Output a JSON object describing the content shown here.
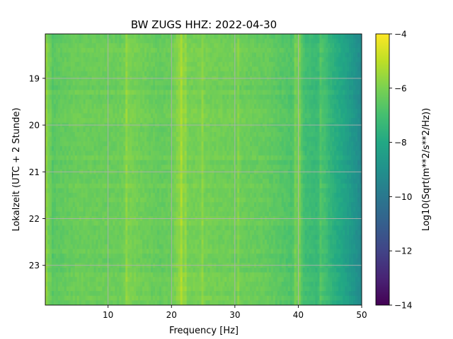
{
  "chart_data": {
    "type": "heatmap",
    "title": "BW ZUGS  HHZ: 2022-04-30",
    "xlabel": "Frequency [Hz]",
    "ylabel": "Lokalzeit (UTC + 2 Stunde)",
    "xlim": [
      0.1,
      50
    ],
    "ylim": [
      23.85,
      18.05
    ],
    "x_ticks": [
      10,
      20,
      30,
      40,
      50
    ],
    "y_ticks": [
      19,
      20,
      21,
      22,
      23
    ],
    "grid": true,
    "colormap": "viridis",
    "colorbar": {
      "label": "Log10(Sqrt(m**2/s**2/Hz))",
      "range": [
        -14,
        -4
      ],
      "ticks": [
        -14,
        -12,
        -10,
        -8,
        -6,
        -4
      ]
    },
    "spectral_profile": {
      "frequency_hz": [
        0.1,
        0.5,
        1,
        2,
        5,
        8,
        10,
        12,
        13,
        15,
        18,
        20,
        21.5,
        22.5,
        25,
        28,
        30,
        32,
        35,
        37,
        39,
        40,
        41,
        43,
        44,
        45,
        46,
        47,
        48,
        49,
        50
      ],
      "level": [
        -5.4,
        -6.0,
        -6.7,
        -6.5,
        -6.3,
        -6.3,
        -6.3,
        -6.3,
        -6.0,
        -6.2,
        -6.4,
        -6.3,
        -5.6,
        -6.1,
        -6.1,
        -6.2,
        -6.2,
        -6.3,
        -6.4,
        -6.6,
        -6.8,
        -6.2,
        -7.1,
        -7.3,
        -6.9,
        -7.5,
        -7.8,
        -8.1,
        -8.5,
        -8.9,
        -9.4
      ]
    },
    "line_features_hz": [
      1.0,
      13.0,
      21.6,
      22.3,
      24.8,
      30.5,
      39.5,
      40.1,
      43.5
    ]
  }
}
